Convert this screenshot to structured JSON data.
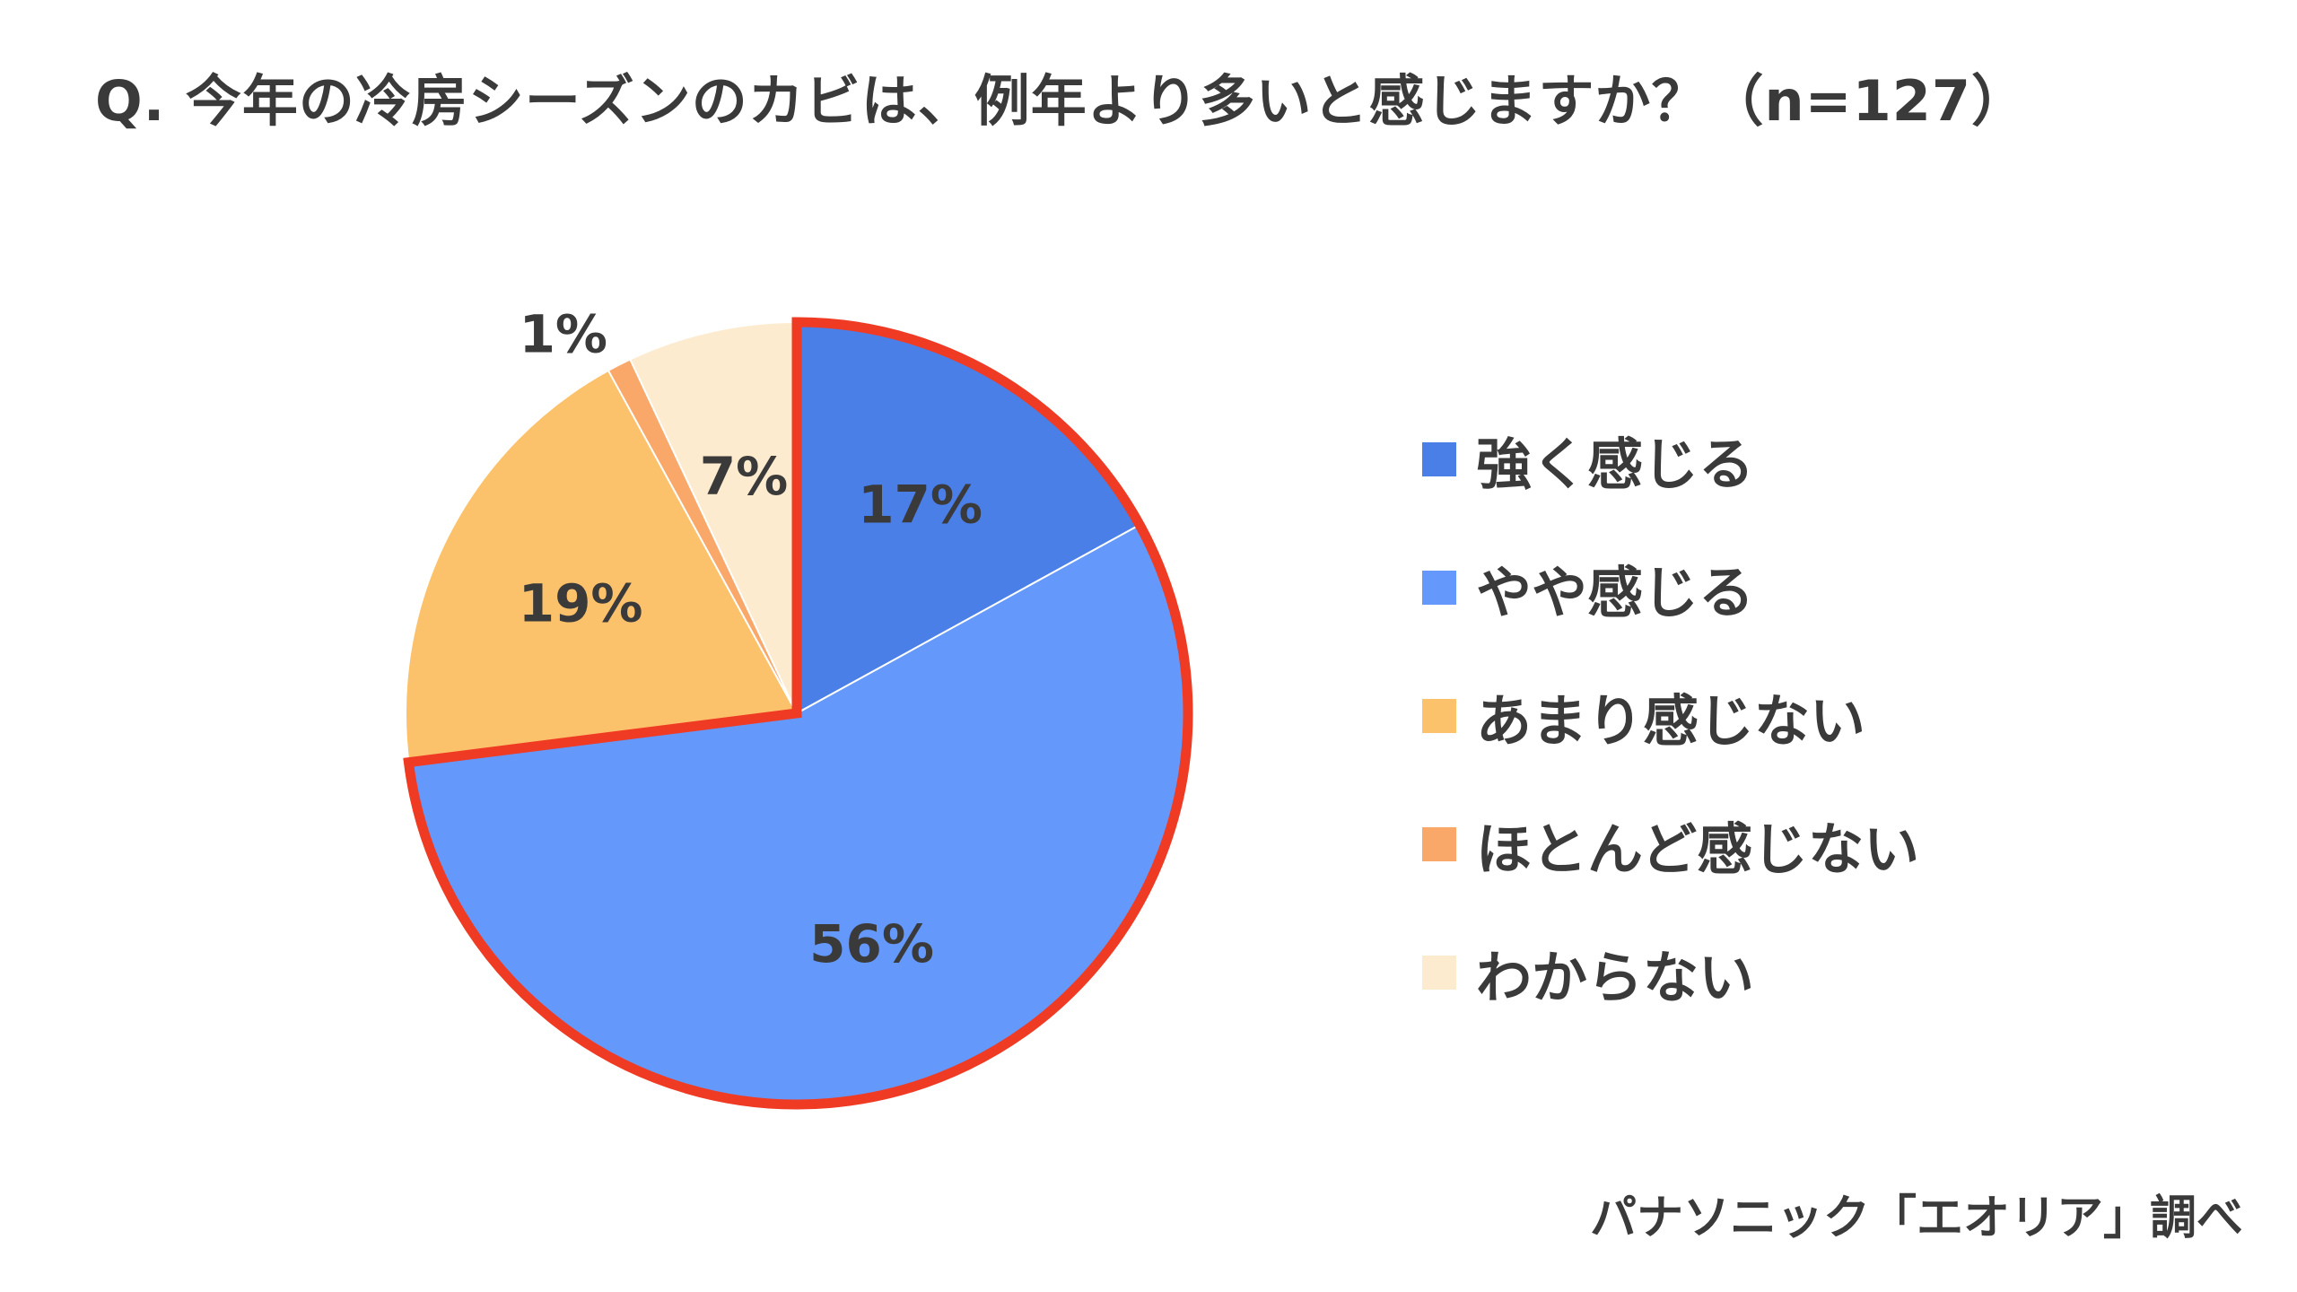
{
  "title": "Q. 今年の冷房シーズンのカビは、例年より多いと感じますか？（n=127）",
  "source": "パナソニック「エオリア」調べ",
  "chart_data": {
    "type": "pie",
    "title": "Q. 今年の冷房シーズンのカビは、例年より多いと感じますか？（n=127）",
    "n": 127,
    "start": "12 o'clock",
    "direction": "clockwise",
    "legend_position": "right",
    "highlight": {
      "categories": [
        "強く感じる",
        "やや感じる"
      ],
      "outline_color": "#ef3b24"
    },
    "slices": [
      {
        "label": "強く感じる",
        "value": 17,
        "display": "17%",
        "color": "#4a7fe8"
      },
      {
        "label": "やや感じる",
        "value": 56,
        "display": "56%",
        "color": "#6499fb"
      },
      {
        "label": "あまり感じない",
        "value": 19,
        "display": "19%",
        "color": "#fcc26b"
      },
      {
        "label": "ほとんど感じない",
        "value": 1,
        "display": "1%",
        "color": "#f9a86a"
      },
      {
        "label": "わからない",
        "value": 7,
        "display": "7%",
        "color": "#fdebcf"
      }
    ]
  }
}
